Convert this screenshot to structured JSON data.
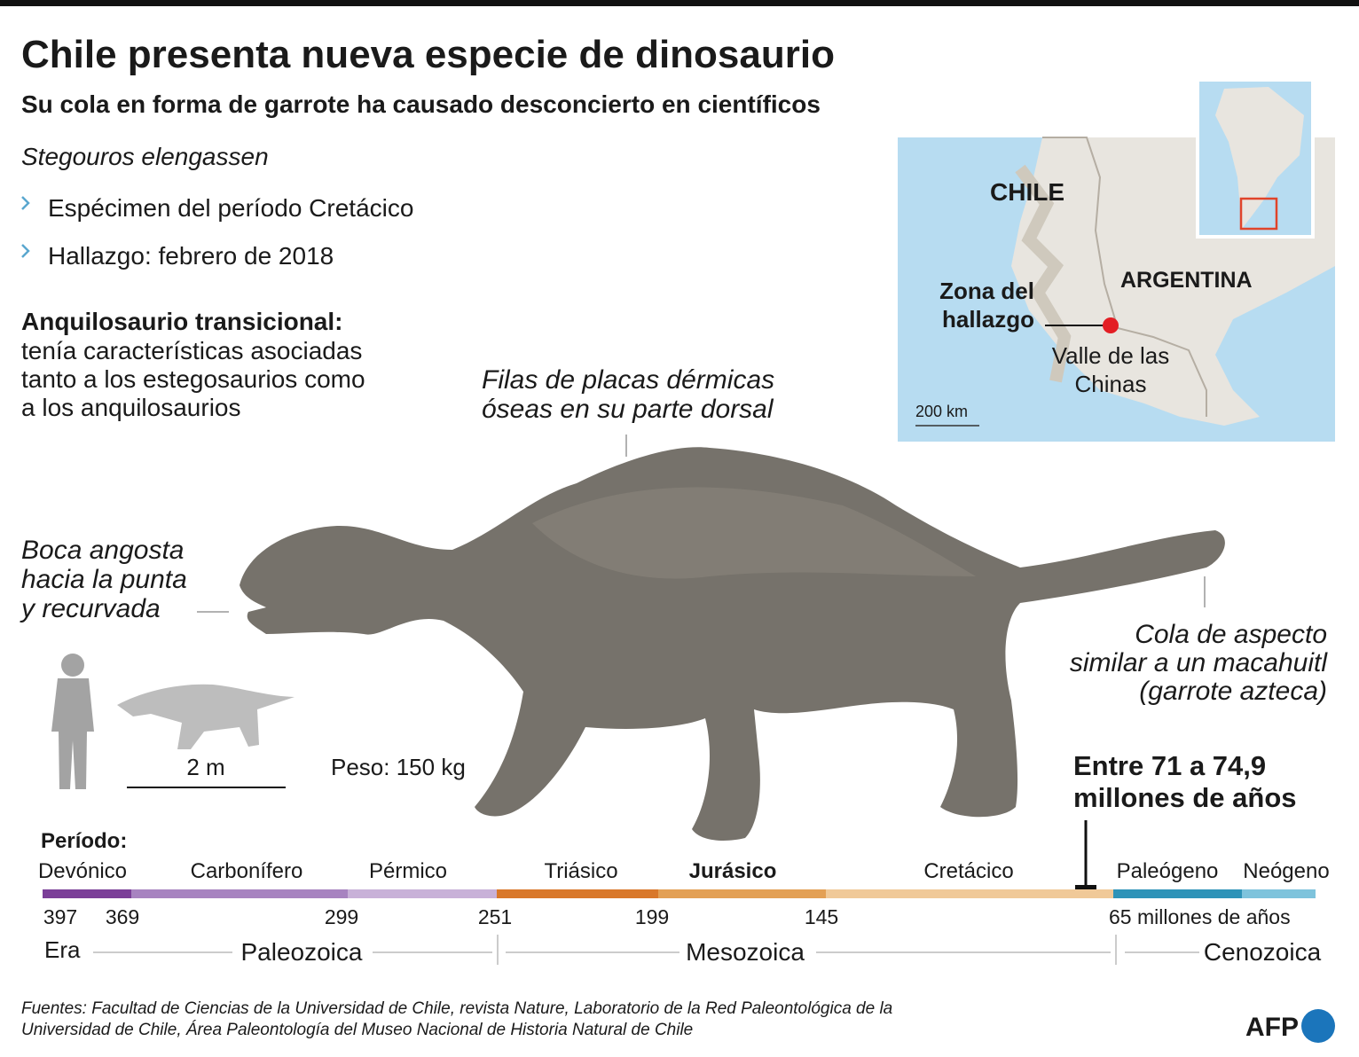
{
  "header": {
    "title": "Chile presenta nueva especie de dinosaurio",
    "subtitle": "Su cola en forma de garrote ha causado desconcierto en científicos"
  },
  "species": "Stegouros elengassen",
  "facts": [
    "Espécimen del período Cretácico",
    "Hallazgo: febrero de 2018"
  ],
  "description": {
    "heading": "Anquilosaurio transicional:",
    "lines": [
      "tenía características asociadas",
      "tanto a los estegosaurios como",
      "a los anquilosaurios"
    ]
  },
  "annotations": {
    "plates": [
      "Filas de placas dérmicas",
      "óseas en su parte dorsal"
    ],
    "mouth": [
      "Boca angosta",
      "hacia la punta",
      "y recurvada"
    ],
    "tail": [
      "Cola de aspecto",
      "similar a un macahuitl",
      "(garrote azteca)"
    ]
  },
  "scale": {
    "length": "2 m",
    "weight": "Peso: 150 kg"
  },
  "dating": [
    "Entre 71 a 74,9",
    "millones de años"
  ],
  "map": {
    "chile": "CHILE",
    "argentina": "ARGENTINA",
    "zone": [
      "Zona del",
      "hallazgo"
    ],
    "place": [
      "Valle de las",
      "Chinas"
    ],
    "scale": "200 km"
  },
  "timeline": {
    "period_label": "Período:",
    "periods": [
      "Devónico",
      "Carbonífero",
      "Pérmico",
      "Triásico",
      "Jurásico",
      "Cretácico",
      "Paleógeno",
      "Neógeno"
    ],
    "ticks": [
      "397",
      "369",
      "299",
      "251",
      "199",
      "145",
      "65 millones de años"
    ],
    "era_label": "Era",
    "eras": [
      "Paleozoica",
      "Mesozoica",
      "Cenozoica"
    ]
  },
  "footer": {
    "sources": [
      "Fuentes: Facultad de Ciencias de la Universidad de Chile, revista Nature, Laboratorio de la Red Paleontológica de la",
      "Universidad de Chile, Área Paleontología del Museo Nacional de Historia Natural de Chile"
    ],
    "logo": "AFP"
  }
}
